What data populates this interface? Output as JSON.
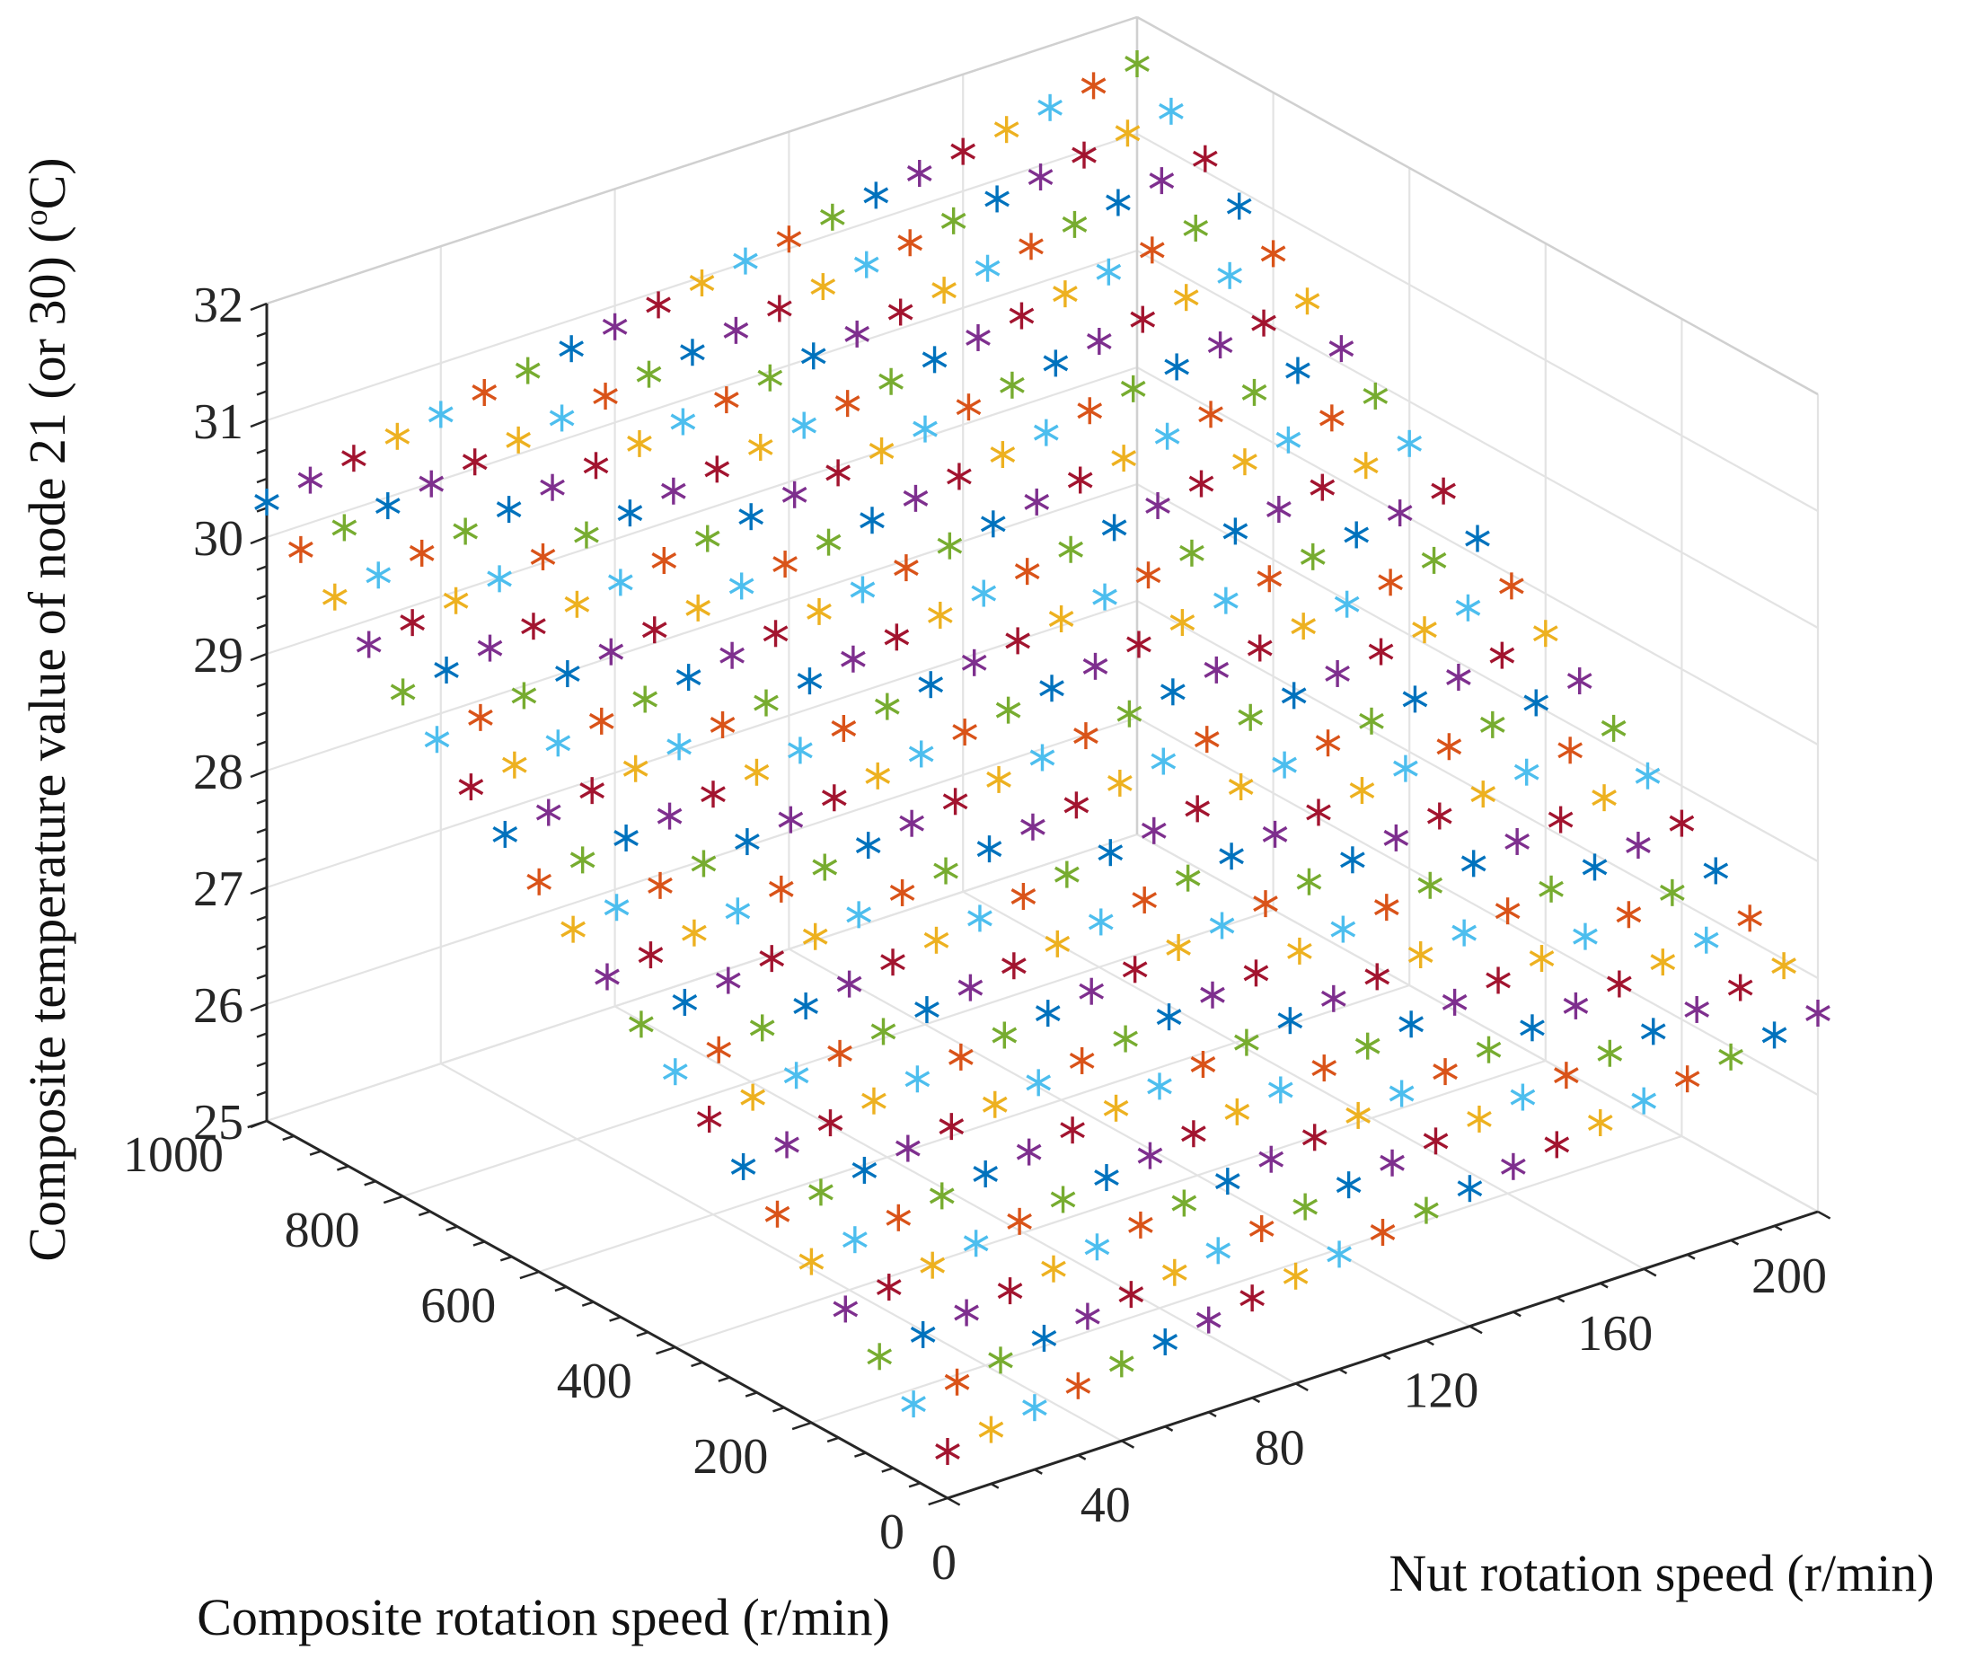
{
  "chart_data": {
    "type": "scatter3d",
    "marker": "*",
    "xlabel": "Nut rotation speed (r/min)",
    "ylabel": "Composite rotation speed (r/min)",
    "zlabel_main": "Composite temperature value of node 21 (or 30) (",
    "zlabel_sup": "o",
    "zlabel_end": "C)",
    "x_ticks": [
      "0",
      "40",
      "80",
      "120",
      "160",
      "200"
    ],
    "y_ticks": [
      "0",
      "200",
      "400",
      "600",
      "800",
      "1000"
    ],
    "z_ticks": [
      "25",
      "26",
      "27",
      "28",
      "29",
      "30",
      "31",
      "32"
    ],
    "xlim": [
      0,
      200
    ],
    "ylim": [
      0,
      1000
    ],
    "zlim": [
      25,
      32
    ],
    "grid": true,
    "x": [
      0,
      10,
      20,
      30,
      40,
      50,
      60,
      70,
      80,
      90,
      100,
      110,
      120,
      130,
      140,
      150,
      160,
      170,
      180,
      190,
      200
    ],
    "y": [
      0,
      50,
      100,
      150,
      200,
      250,
      300,
      350,
      400,
      450,
      500,
      550,
      600,
      650,
      700,
      750,
      800,
      850,
      900,
      950,
      1000
    ],
    "z_surface": {
      "z_at_x0_y0": 25.4,
      "z_at_x200_y0": 26.7,
      "z_at_x0_y1000": 30.3,
      "z_at_x200_y1000": 31.6
    },
    "series_colors": [
      "#0072BD",
      "#D95319",
      "#EDB120",
      "#7E2F8E",
      "#77AC30",
      "#4DBEEE",
      "#A2142F"
    ]
  }
}
